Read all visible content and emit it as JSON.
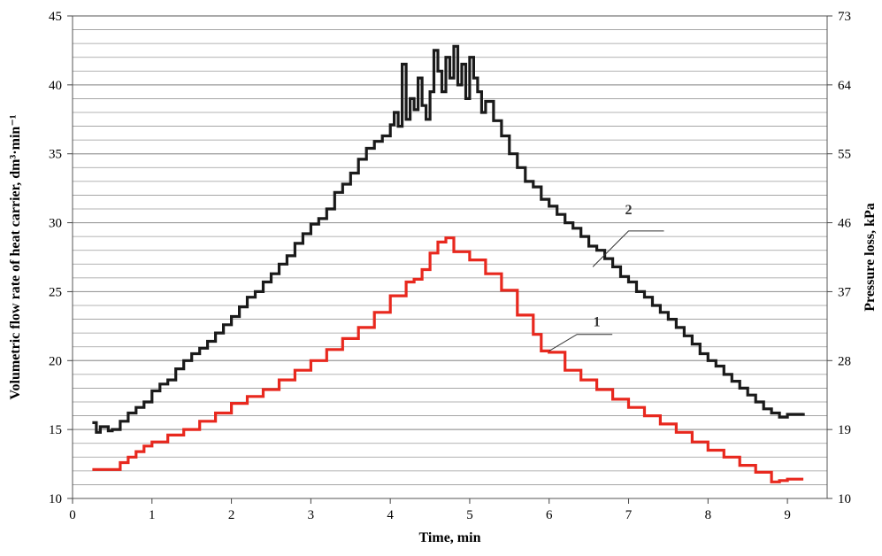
{
  "chart_data": {
    "type": "line",
    "title": "",
    "xlabel": "Time, min",
    "ylabel_left": "Volumetric flow rate of heat carrier, dm³·min⁻¹",
    "ylabel_right": "Pressure loss, kPa",
    "xlim": [
      0,
      9.5
    ],
    "ylim_left": [
      10,
      45
    ],
    "ylim_right": [
      10,
      73
    ],
    "x_ticks": [
      "0",
      "1",
      "2",
      "3",
      "4",
      "5",
      "6",
      "7",
      "8",
      "9"
    ],
    "y_left_ticks": [
      "10",
      "15",
      "20",
      "25",
      "30",
      "35",
      "40",
      "45"
    ],
    "y_right_ticks": [
      "10",
      "19",
      "28",
      "37",
      "46",
      "55",
      "64",
      "73"
    ],
    "grid": "horizontal",
    "colors": {
      "series_1": "#e8281e",
      "series_2": "#1a1a1a",
      "grid": "#9a9a9a"
    },
    "series": [
      {
        "name": "1",
        "axis": "left",
        "x": [
          0.25,
          0.5,
          0.6,
          0.7,
          0.8,
          0.9,
          1.0,
          1.2,
          1.4,
          1.6,
          1.8,
          2.0,
          2.2,
          2.4,
          2.6,
          2.8,
          3.0,
          3.2,
          3.4,
          3.6,
          3.8,
          4.0,
          4.2,
          4.3,
          4.4,
          4.5,
          4.6,
          4.7,
          4.8,
          5.0,
          5.2,
          5.4,
          5.6,
          5.8,
          5.9,
          6.0,
          6.2,
          6.4,
          6.6,
          6.8,
          7.0,
          7.2,
          7.4,
          7.6,
          7.8,
          8.0,
          8.2,
          8.4,
          8.6,
          8.8,
          8.9,
          9.0,
          9.2
        ],
        "y": [
          12.1,
          12.1,
          12.6,
          13.0,
          13.4,
          13.8,
          14.1,
          14.6,
          15.0,
          15.6,
          16.2,
          16.9,
          17.4,
          17.9,
          18.6,
          19.3,
          20.0,
          20.8,
          21.6,
          22.4,
          23.5,
          24.7,
          25.7,
          25.9,
          26.6,
          27.8,
          28.6,
          28.9,
          27.9,
          27.3,
          26.3,
          25.1,
          23.3,
          21.9,
          20.7,
          20.6,
          19.3,
          18.6,
          17.9,
          17.2,
          16.6,
          16.0,
          15.4,
          14.8,
          14.1,
          13.5,
          13.0,
          12.4,
          11.9,
          11.2,
          11.3,
          11.4,
          11.4
        ]
      },
      {
        "name": "2",
        "axis": "left",
        "x": [
          0.25,
          0.3,
          0.35,
          0.45,
          0.5,
          0.6,
          0.7,
          0.8,
          0.9,
          1.0,
          1.1,
          1.2,
          1.3,
          1.4,
          1.5,
          1.6,
          1.7,
          1.8,
          1.9,
          2.0,
          2.1,
          2.2,
          2.3,
          2.4,
          2.5,
          2.6,
          2.7,
          2.8,
          2.9,
          3.0,
          3.1,
          3.2,
          3.3,
          3.4,
          3.5,
          3.6,
          3.7,
          3.8,
          3.9,
          4.0,
          4.05,
          4.1,
          4.15,
          4.2,
          4.25,
          4.3,
          4.35,
          4.4,
          4.45,
          4.5,
          4.55,
          4.6,
          4.65,
          4.7,
          4.75,
          4.8,
          4.85,
          4.9,
          4.95,
          5.0,
          5.05,
          5.1,
          5.15,
          5.2,
          5.3,
          5.4,
          5.5,
          5.6,
          5.7,
          5.8,
          5.9,
          6.0,
          6.1,
          6.2,
          6.3,
          6.4,
          6.5,
          6.6,
          6.7,
          6.8,
          6.9,
          7.0,
          7.1,
          7.2,
          7.3,
          7.4,
          7.5,
          7.6,
          7.7,
          7.8,
          7.9,
          8.0,
          8.1,
          8.2,
          8.3,
          8.4,
          8.5,
          8.6,
          8.7,
          8.8,
          8.9,
          9.0,
          9.2
        ],
        "y": [
          15.5,
          14.8,
          15.2,
          14.9,
          15.0,
          15.6,
          16.2,
          16.6,
          17.0,
          17.8,
          18.3,
          18.6,
          19.4,
          20.0,
          20.5,
          20.9,
          21.4,
          22.0,
          22.6,
          23.2,
          23.9,
          24.6,
          25.0,
          25.7,
          26.3,
          27.0,
          27.6,
          28.5,
          29.2,
          29.9,
          30.3,
          31.0,
          32.2,
          32.8,
          33.6,
          34.6,
          35.4,
          35.9,
          36.3,
          37.1,
          38.0,
          37.0,
          41.5,
          37.5,
          39.0,
          38.2,
          40.5,
          38.5,
          37.5,
          39.5,
          42.5,
          41.0,
          39.5,
          42.0,
          40.5,
          42.8,
          40.0,
          41.5,
          39.0,
          42.0,
          40.5,
          39.5,
          38.0,
          38.8,
          37.4,
          36.3,
          35.0,
          34.0,
          33.0,
          32.6,
          31.7,
          31.2,
          30.6,
          30.0,
          29.6,
          29.0,
          28.3,
          28.0,
          27.4,
          26.8,
          26.1,
          25.7,
          25.0,
          24.6,
          24.0,
          23.5,
          23.0,
          22.4,
          21.8,
          21.2,
          20.5,
          20.0,
          19.6,
          19.0,
          18.5,
          18.0,
          17.5,
          17.0,
          16.5,
          16.2,
          15.9,
          16.1,
          16.2
        ]
      }
    ],
    "annotations": [
      {
        "text": "1",
        "series": "1"
      },
      {
        "text": "2",
        "series": "2"
      }
    ]
  }
}
